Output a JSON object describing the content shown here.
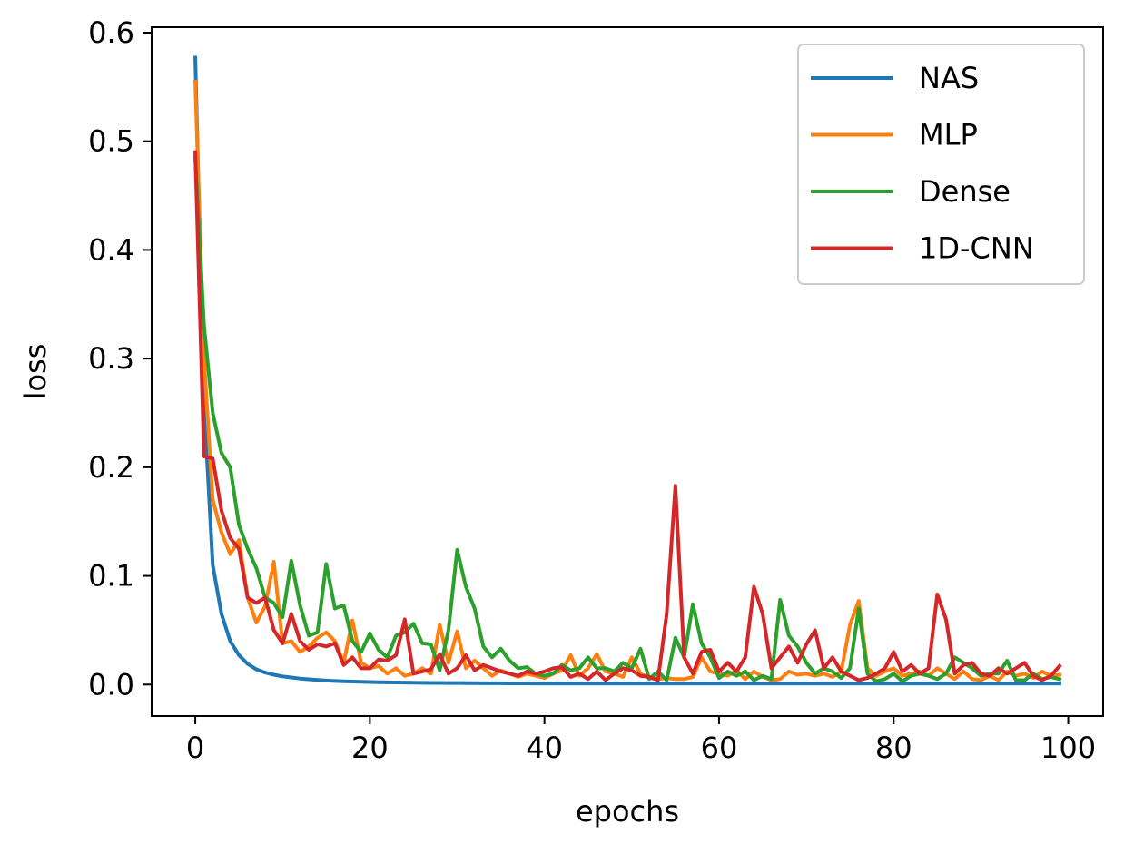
{
  "chart_data": {
    "type": "line",
    "title": "",
    "xlabel": "epochs",
    "ylabel": "loss",
    "xlim": [
      -5,
      104
    ],
    "ylim": [
      -0.029,
      0.605
    ],
    "xticks": [
      0,
      20,
      40,
      60,
      80,
      100
    ],
    "xtick_labels": [
      "0",
      "20",
      "40",
      "60",
      "80",
      "100"
    ],
    "yticks": [
      0.0,
      0.1,
      0.2,
      0.3,
      0.4,
      0.5,
      0.6
    ],
    "ytick_labels": [
      "0.0",
      "0.1",
      "0.2",
      "0.3",
      "0.4",
      "0.5",
      "0.6"
    ],
    "grid": false,
    "legend_position": "top-right",
    "series": [
      {
        "name": "NAS",
        "color": "#1f77b4",
        "values": [
          0.577,
          0.26,
          0.11,
          0.065,
          0.04,
          0.027,
          0.019,
          0.014,
          0.011,
          0.009,
          0.0075,
          0.0065,
          0.0055,
          0.0048,
          0.0042,
          0.0037,
          0.0033,
          0.003,
          0.0027,
          0.0025,
          0.0023,
          0.0021,
          0.002,
          0.0019,
          0.0018,
          0.0017,
          0.0016,
          0.0015,
          0.0015,
          0.0014,
          0.0014,
          0.0013,
          0.0013,
          0.0012,
          0.0012,
          0.0012,
          0.0011,
          0.0011,
          0.0011,
          0.001,
          0.001,
          0.001,
          0.001,
          0.001,
          0.001,
          0.001,
          0.001,
          0.001,
          0.001,
          0.001,
          0.001,
          0.001,
          0.001,
          0.001,
          0.001,
          0.001,
          0.001,
          0.001,
          0.001,
          0.001,
          0.001,
          0.001,
          0.001,
          0.001,
          0.001,
          0.001,
          0.001,
          0.001,
          0.001,
          0.001,
          0.001,
          0.001,
          0.001,
          0.001,
          0.001,
          0.001,
          0.001,
          0.001,
          0.001,
          0.001,
          0.001,
          0.001,
          0.001,
          0.001,
          0.001,
          0.001,
          0.001,
          0.001,
          0.001,
          0.001,
          0.001,
          0.001,
          0.001,
          0.001,
          0.001,
          0.001,
          0.001,
          0.001,
          0.001,
          0.001
        ]
      },
      {
        "name": "MLP",
        "color": "#ff7f0e",
        "values": [
          0.555,
          0.3,
          0.17,
          0.14,
          0.12,
          0.133,
          0.08,
          0.057,
          0.072,
          0.113,
          0.038,
          0.04,
          0.03,
          0.035,
          0.043,
          0.048,
          0.04,
          0.02,
          0.059,
          0.02,
          0.015,
          0.017,
          0.01,
          0.015,
          0.008,
          0.01,
          0.015,
          0.01,
          0.055,
          0.02,
          0.049,
          0.015,
          0.022,
          0.015,
          0.008,
          0.013,
          0.01,
          0.007,
          0.01,
          0.008,
          0.006,
          0.01,
          0.013,
          0.027,
          0.008,
          0.015,
          0.028,
          0.012,
          0.01,
          0.007,
          0.025,
          0.01,
          0.006,
          0.005,
          0.006,
          0.005,
          0.005,
          0.007,
          0.025,
          0.012,
          0.01,
          0.008,
          0.013,
          0.005,
          0.012,
          0.007,
          0.004,
          0.005,
          0.012,
          0.009,
          0.01,
          0.008,
          0.01,
          0.007,
          0.012,
          0.055,
          0.077,
          0.015,
          0.008,
          0.012,
          0.015,
          0.008,
          0.01,
          0.012,
          0.008,
          0.015,
          0.01,
          0.005,
          0.012,
          0.005,
          0.004,
          0.008,
          0.004,
          0.012,
          0.008,
          0.01,
          0.006,
          0.012,
          0.008,
          0.009
        ]
      },
      {
        "name": "Dense",
        "color": "#2ca02c",
        "values": [
          0.485,
          0.33,
          0.25,
          0.213,
          0.2,
          0.147,
          0.125,
          0.107,
          0.08,
          0.075,
          0.062,
          0.114,
          0.073,
          0.045,
          0.048,
          0.111,
          0.07,
          0.073,
          0.04,
          0.03,
          0.047,
          0.032,
          0.025,
          0.045,
          0.048,
          0.056,
          0.038,
          0.037,
          0.013,
          0.05,
          0.124,
          0.09,
          0.07,
          0.035,
          0.025,
          0.033,
          0.022,
          0.015,
          0.016,
          0.01,
          0.008,
          0.01,
          0.018,
          0.013,
          0.015,
          0.025,
          0.015,
          0.015,
          0.012,
          0.02,
          0.015,
          0.033,
          0.005,
          0.012,
          0.004,
          0.043,
          0.025,
          0.074,
          0.038,
          0.025,
          0.006,
          0.012,
          0.008,
          0.012,
          0.004,
          0.008,
          0.005,
          0.078,
          0.045,
          0.035,
          0.02,
          0.01,
          0.015,
          0.012,
          0.006,
          0.015,
          0.07,
          0.01,
          0.003,
          0.005,
          0.01,
          0.003,
          0.008,
          0.01,
          0.008,
          0.005,
          0.01,
          0.025,
          0.02,
          0.015,
          0.008,
          0.01,
          0.01,
          0.022,
          0.004,
          0.004,
          0.01,
          0.005,
          0.007,
          0.005
        ]
      },
      {
        "name": "1D-CNN",
        "color": "#d62728",
        "values": [
          0.49,
          0.21,
          0.208,
          0.16,
          0.135,
          0.125,
          0.08,
          0.075,
          0.08,
          0.05,
          0.038,
          0.065,
          0.04,
          0.032,
          0.037,
          0.035,
          0.038,
          0.018,
          0.025,
          0.015,
          0.015,
          0.023,
          0.022,
          0.027,
          0.06,
          0.01,
          0.012,
          0.014,
          0.028,
          0.01,
          0.015,
          0.027,
          0.013,
          0.018,
          0.015,
          0.012,
          0.01,
          0.008,
          0.012,
          0.01,
          0.012,
          0.015,
          0.016,
          0.007,
          0.01,
          0.005,
          0.012,
          0.004,
          0.01,
          0.015,
          0.013,
          0.008,
          0.007,
          0.004,
          0.065,
          0.183,
          0.025,
          0.01,
          0.03,
          0.032,
          0.012,
          0.02,
          0.012,
          0.025,
          0.09,
          0.065,
          0.015,
          0.025,
          0.035,
          0.02,
          0.037,
          0.05,
          0.015,
          0.025,
          0.012,
          0.008,
          0.004,
          0.006,
          0.01,
          0.015,
          0.03,
          0.012,
          0.018,
          0.01,
          0.015,
          0.083,
          0.06,
          0.01,
          0.018,
          0.02,
          0.01,
          0.008,
          0.015,
          0.01,
          0.015,
          0.02,
          0.008,
          0.004,
          0.008,
          0.017
        ]
      }
    ]
  }
}
